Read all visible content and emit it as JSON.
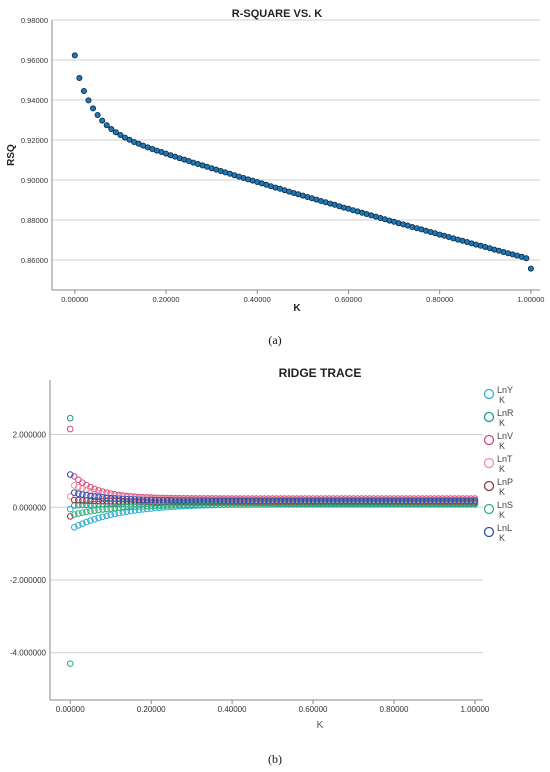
{
  "chart_data": [
    {
      "type": "scatter",
      "title": "R-SQUARE VS. K",
      "xlabel": "K",
      "ylabel": "RSQ",
      "xlim": [
        -0.05,
        1.02
      ],
      "ylim": [
        0.845,
        0.98
      ],
      "x_ticks": [
        "0.00000",
        "0.20000",
        "0.40000",
        "0.60000",
        "0.80000",
        "1.00000"
      ],
      "y_ticks": [
        "0.86000",
        "0.88000",
        "0.90000",
        "0.92000",
        "0.94000",
        "0.96000",
        "0.98000"
      ],
      "grid": "horizontal",
      "legend": "none",
      "marker_color": "#1f77b4",
      "series": [
        {
          "x": [
            0.0,
            0.01,
            0.02,
            0.03,
            0.04,
            0.05,
            0.06,
            0.07,
            0.08,
            0.09,
            0.1,
            0.11,
            0.12,
            0.13,
            0.14,
            0.15,
            0.16,
            0.17,
            0.18,
            0.19,
            0.2,
            0.21,
            0.22,
            0.23,
            0.24,
            0.25,
            0.26,
            0.27,
            0.28,
            0.29,
            0.3,
            0.31,
            0.32,
            0.33,
            0.34,
            0.35,
            0.36,
            0.37,
            0.38,
            0.39,
            0.4,
            0.41,
            0.42,
            0.43,
            0.44,
            0.45,
            0.46,
            0.47,
            0.48,
            0.49,
            0.5,
            0.51,
            0.52,
            0.53,
            0.54,
            0.55,
            0.56,
            0.57,
            0.58,
            0.59,
            0.6,
            0.61,
            0.62,
            0.63,
            0.64,
            0.65,
            0.66,
            0.67,
            0.68,
            0.69,
            0.7,
            0.71,
            0.72,
            0.73,
            0.74,
            0.75,
            0.76,
            0.77,
            0.78,
            0.79,
            0.8,
            0.81,
            0.82,
            0.83,
            0.84,
            0.85,
            0.86,
            0.87,
            0.88,
            0.89,
            0.9,
            0.91,
            0.92,
            0.93,
            0.94,
            0.95,
            0.96,
            0.97,
            0.98,
            0.99,
            1.0
          ],
          "y": [
            0.9623,
            0.951,
            0.9445,
            0.9398,
            0.9358,
            0.9325,
            0.9297,
            0.9274,
            0.9255,
            0.9239,
            0.9225,
            0.9212,
            0.9201,
            0.919,
            0.9181,
            0.9172,
            0.9163,
            0.9155,
            0.9147,
            0.914,
            0.9132,
            0.9124,
            0.9117,
            0.9109,
            0.9102,
            0.9095,
            0.9087,
            0.908,
            0.9073,
            0.9066,
            0.9059,
            0.9052,
            0.9045,
            0.9038,
            0.9031,
            0.9024,
            0.9017,
            0.901,
            0.9003,
            0.8997,
            0.899,
            0.8983,
            0.8976,
            0.8969,
            0.8962,
            0.8956,
            0.8949,
            0.8942,
            0.8935,
            0.8929,
            0.8922,
            0.8915,
            0.8909,
            0.8902,
            0.8895,
            0.8889,
            0.8882,
            0.8876,
            0.8869,
            0.8862,
            0.8856,
            0.8849,
            0.8843,
            0.8836,
            0.883,
            0.8823,
            0.8817,
            0.881,
            0.8804,
            0.8797,
            0.8791,
            0.8784,
            0.8778,
            0.8772,
            0.8765,
            0.8759,
            0.8753,
            0.8746,
            0.874,
            0.8734,
            0.8727,
            0.8721,
            0.8715,
            0.8708,
            0.8702,
            0.8696,
            0.869,
            0.8683,
            0.8677,
            0.8671,
            0.8665,
            0.8659,
            0.8652,
            0.8646,
            0.864,
            0.8634,
            0.8628,
            0.8622,
            0.8616,
            0.8609,
            0.8557
          ]
        }
      ]
    },
    {
      "type": "scatter",
      "title": "RIDGE TRACE",
      "xlabel": "K",
      "ylabel": "",
      "xlim": [
        -0.05,
        1.02
      ],
      "ylim": [
        -5.3,
        3.5
      ],
      "x_ticks": [
        "0.00000",
        "0.20000",
        "0.40000",
        "0.60000",
        "0.80000",
        "1.00000"
      ],
      "y_ticks": [
        "2.000000",
        "0.000000",
        "-2.000000",
        "-4.000000"
      ],
      "y_tick_values": [
        2,
        0,
        -2,
        -4
      ],
      "grid": "horizontal",
      "legend": "right",
      "x": [
        0.0,
        0.01,
        0.02,
        0.03,
        0.04,
        0.05,
        0.06,
        0.07,
        0.08,
        0.09,
        0.1,
        0.11,
        0.12,
        0.13,
        0.14,
        0.15,
        0.16,
        0.17,
        0.18,
        0.19,
        0.2,
        0.21,
        0.22,
        0.23,
        0.24,
        0.25,
        0.26,
        0.27,
        0.28,
        0.29,
        0.3,
        0.31,
        0.32,
        0.33,
        0.34,
        0.35,
        0.36,
        0.37,
        0.38,
        0.39,
        0.4,
        0.41,
        0.42,
        0.43,
        0.44,
        0.45,
        0.46,
        0.47,
        0.48,
        0.49,
        0.5,
        0.51,
        0.52,
        0.53,
        0.54,
        0.55,
        0.56,
        0.57,
        0.58,
        0.59,
        0.6,
        0.61,
        0.62,
        0.63,
        0.64,
        0.65,
        0.66,
        0.67,
        0.68,
        0.69,
        0.7,
        0.71,
        0.72,
        0.73,
        0.74,
        0.75,
        0.76,
        0.77,
        0.78,
        0.79,
        0.8,
        0.81,
        0.82,
        0.83,
        0.84,
        0.85,
        0.86,
        0.87,
        0.88,
        0.89,
        0.9,
        0.91,
        0.92,
        0.93,
        0.94,
        0.95,
        0.96,
        0.97,
        0.98,
        0.99,
        1.0
      ],
      "series": [
        {
          "name": "LnY",
          "sub": "K",
          "color": "#2aaed6",
          "start": -0.05,
          "y1": -0.55,
          "end": 0.1,
          "decay": 0.12
        },
        {
          "name": "LnR",
          "sub": "K",
          "color": "#1b9a8c",
          "start": 2.45,
          "y1": 0.05,
          "end": 0.12,
          "decay": 0.1
        },
        {
          "name": "LnV",
          "sub": "K",
          "color": "#d6457a",
          "start": 2.15,
          "y1": 0.85,
          "end": 0.24,
          "decay": 0.06
        },
        {
          "name": "LnT",
          "sub": "K",
          "color": "#ef8fa0",
          "start": 0.3,
          "y1": 0.6,
          "end": 0.2,
          "decay": 0.08
        },
        {
          "name": "LnP",
          "sub": "K",
          "color": "#8b3a3a",
          "start": -0.25,
          "y1": 0.2,
          "end": 0.15,
          "decay": 0.08
        },
        {
          "name": "LnS",
          "sub": "K",
          "color": "#2ab075",
          "start": -4.3,
          "y1": -0.2,
          "end": 0.08,
          "decay": 0.1
        },
        {
          "name": "LnL",
          "sub": "K",
          "color": "#2c4fb8",
          "start": 0.9,
          "y1": 0.4,
          "end": 0.18,
          "decay": 0.08
        }
      ]
    }
  ],
  "captions": {
    "a": "(a)",
    "b": "(b)"
  }
}
